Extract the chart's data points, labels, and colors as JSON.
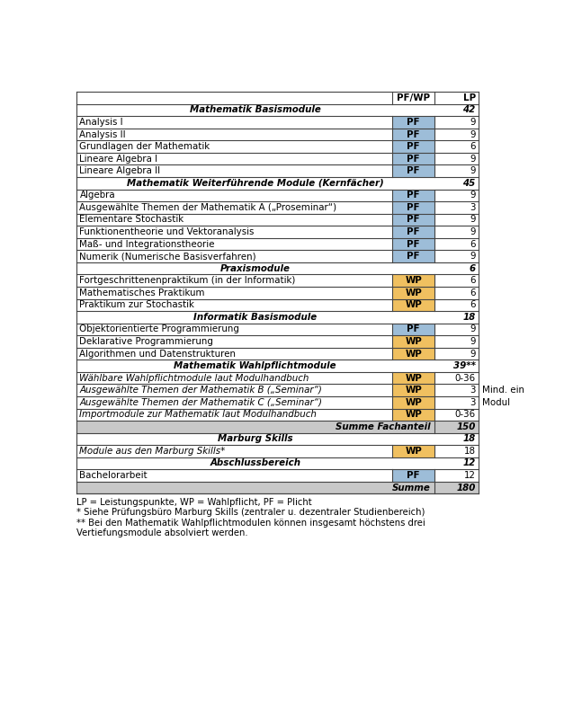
{
  "rows": [
    {
      "type": "header_top",
      "col1": "",
      "col2": "PF/WP",
      "col3": "LP"
    },
    {
      "type": "section",
      "col1": "Mathematik Basismodule",
      "col2": "",
      "col3": "42"
    },
    {
      "type": "data",
      "col1": "Analysis I",
      "col2": "PF",
      "col3": "9",
      "badge": "pf"
    },
    {
      "type": "data",
      "col1": "Analysis II",
      "col2": "PF",
      "col3": "9",
      "badge": "pf"
    },
    {
      "type": "data",
      "col1": "Grundlagen der Mathematik",
      "col2": "PF",
      "col3": "6",
      "badge": "pf"
    },
    {
      "type": "data",
      "col1": "Lineare Algebra I",
      "col2": "PF",
      "col3": "9",
      "badge": "pf"
    },
    {
      "type": "data",
      "col1": "Lineare Algebra II",
      "col2": "PF",
      "col3": "9",
      "badge": "pf"
    },
    {
      "type": "section",
      "col1": "Mathematik Weiterführende Module (Kernfächer)",
      "col2": "",
      "col3": "45"
    },
    {
      "type": "data",
      "col1": "Algebra",
      "col2": "PF",
      "col3": "9",
      "badge": "pf"
    },
    {
      "type": "data",
      "col1": "Ausgewählte Themen der Mathematik A („Proseminar“)",
      "col2": "PF",
      "col3": "3",
      "badge": "pf"
    },
    {
      "type": "data",
      "col1": "Elementare Stochastik",
      "col2": "PF",
      "col3": "9",
      "badge": "pf"
    },
    {
      "type": "data",
      "col1": "Funktionentheorie und Vektoranalysis",
      "col2": "PF",
      "col3": "9",
      "badge": "pf"
    },
    {
      "type": "data",
      "col1": "Maß- und Integrationstheorie",
      "col2": "PF",
      "col3": "6",
      "badge": "pf"
    },
    {
      "type": "data",
      "col1": "Numerik (Numerische Basisverfahren)",
      "col2": "PF",
      "col3": "9",
      "badge": "pf"
    },
    {
      "type": "section",
      "col1": "Praxismodule",
      "col2": "",
      "col3": "6"
    },
    {
      "type": "data",
      "col1": "Fortgeschrittenenpraktikum (in der Informatik)",
      "col2": "WP",
      "col3": "6",
      "badge": "wp"
    },
    {
      "type": "data",
      "col1": "Mathematisches Praktikum",
      "col2": "WP",
      "col3": "6",
      "badge": "wp"
    },
    {
      "type": "data",
      "col1": "Praktikum zur Stochastik",
      "col2": "WP",
      "col3": "6",
      "badge": "wp"
    },
    {
      "type": "section",
      "col1": "Informatik Basismodule",
      "col2": "",
      "col3": "18"
    },
    {
      "type": "data",
      "col1": "Objektorientierte Programmierung",
      "col2": "PF",
      "col3": "9",
      "badge": "pf"
    },
    {
      "type": "data",
      "col1": "Deklarative Programmierung",
      "col2": "WP",
      "col3": "9",
      "badge": "wp"
    },
    {
      "type": "data",
      "col1": "Algorithmen und Datenstrukturen",
      "col2": "WP",
      "col3": "9",
      "badge": "wp"
    },
    {
      "type": "section",
      "col1": "Mathematik Wahlpflichtmodule",
      "col2": "",
      "col3": "39**"
    },
    {
      "type": "data_italic",
      "col1": "Wählbare Wahlpflichtmodule laut Modulhandbuch",
      "col2": "WP",
      "col3": "0-36",
      "badge": "wp",
      "side_note": ""
    },
    {
      "type": "data_italic",
      "col1": "Ausgewählte Themen der Mathematik B („Seminar“)",
      "col2": "WP",
      "col3": "3",
      "badge": "wp",
      "side_note": "Mind. ein"
    },
    {
      "type": "data_italic",
      "col1": "Ausgewählte Themen der Mathematik C („Seminar“)",
      "col2": "WP",
      "col3": "3",
      "badge": "wp",
      "side_note": "Modul"
    },
    {
      "type": "data_italic",
      "col1": "Importmodule zur Mathematik laut Modulhandbuch",
      "col2": "WP",
      "col3": "0-36",
      "badge": "wp",
      "side_note": ""
    },
    {
      "type": "sum_row",
      "col1": "Summe Fachanteil",
      "col2": "",
      "col3": "150"
    },
    {
      "type": "section",
      "col1": "Marburg Skills",
      "col2": "",
      "col3": "18"
    },
    {
      "type": "data_italic",
      "col1": "Module aus den Marburg Skills*",
      "col2": "WP",
      "col3": "18",
      "badge": "wp",
      "side_note": ""
    },
    {
      "type": "section",
      "col1": "Abschlussbereich",
      "col2": "",
      "col3": "12"
    },
    {
      "type": "data",
      "col1": "Bachelorarbeit",
      "col2": "PF",
      "col3": "12",
      "badge": "pf"
    },
    {
      "type": "sum_row",
      "col1": "Summe",
      "col2": "",
      "col3": "180"
    }
  ],
  "footnotes": [
    "LP = Leistungspunkte, WP = Wahlpflicht, PF = Plicht",
    "* Siehe Prüfungsbüro Marburg Skills (zentraler u. dezentraler Studienbereich)",
    "** Bei den Mathematik Wahlpflichtmodulen können insgesamt höchstens drei",
    "Vertiefungsmodule absolviert werden."
  ],
  "pf_color": "#9DBDD8",
  "wp_color": "#F0C060",
  "sum_bg": "#C8C8C8",
  "border_color": "#444444"
}
